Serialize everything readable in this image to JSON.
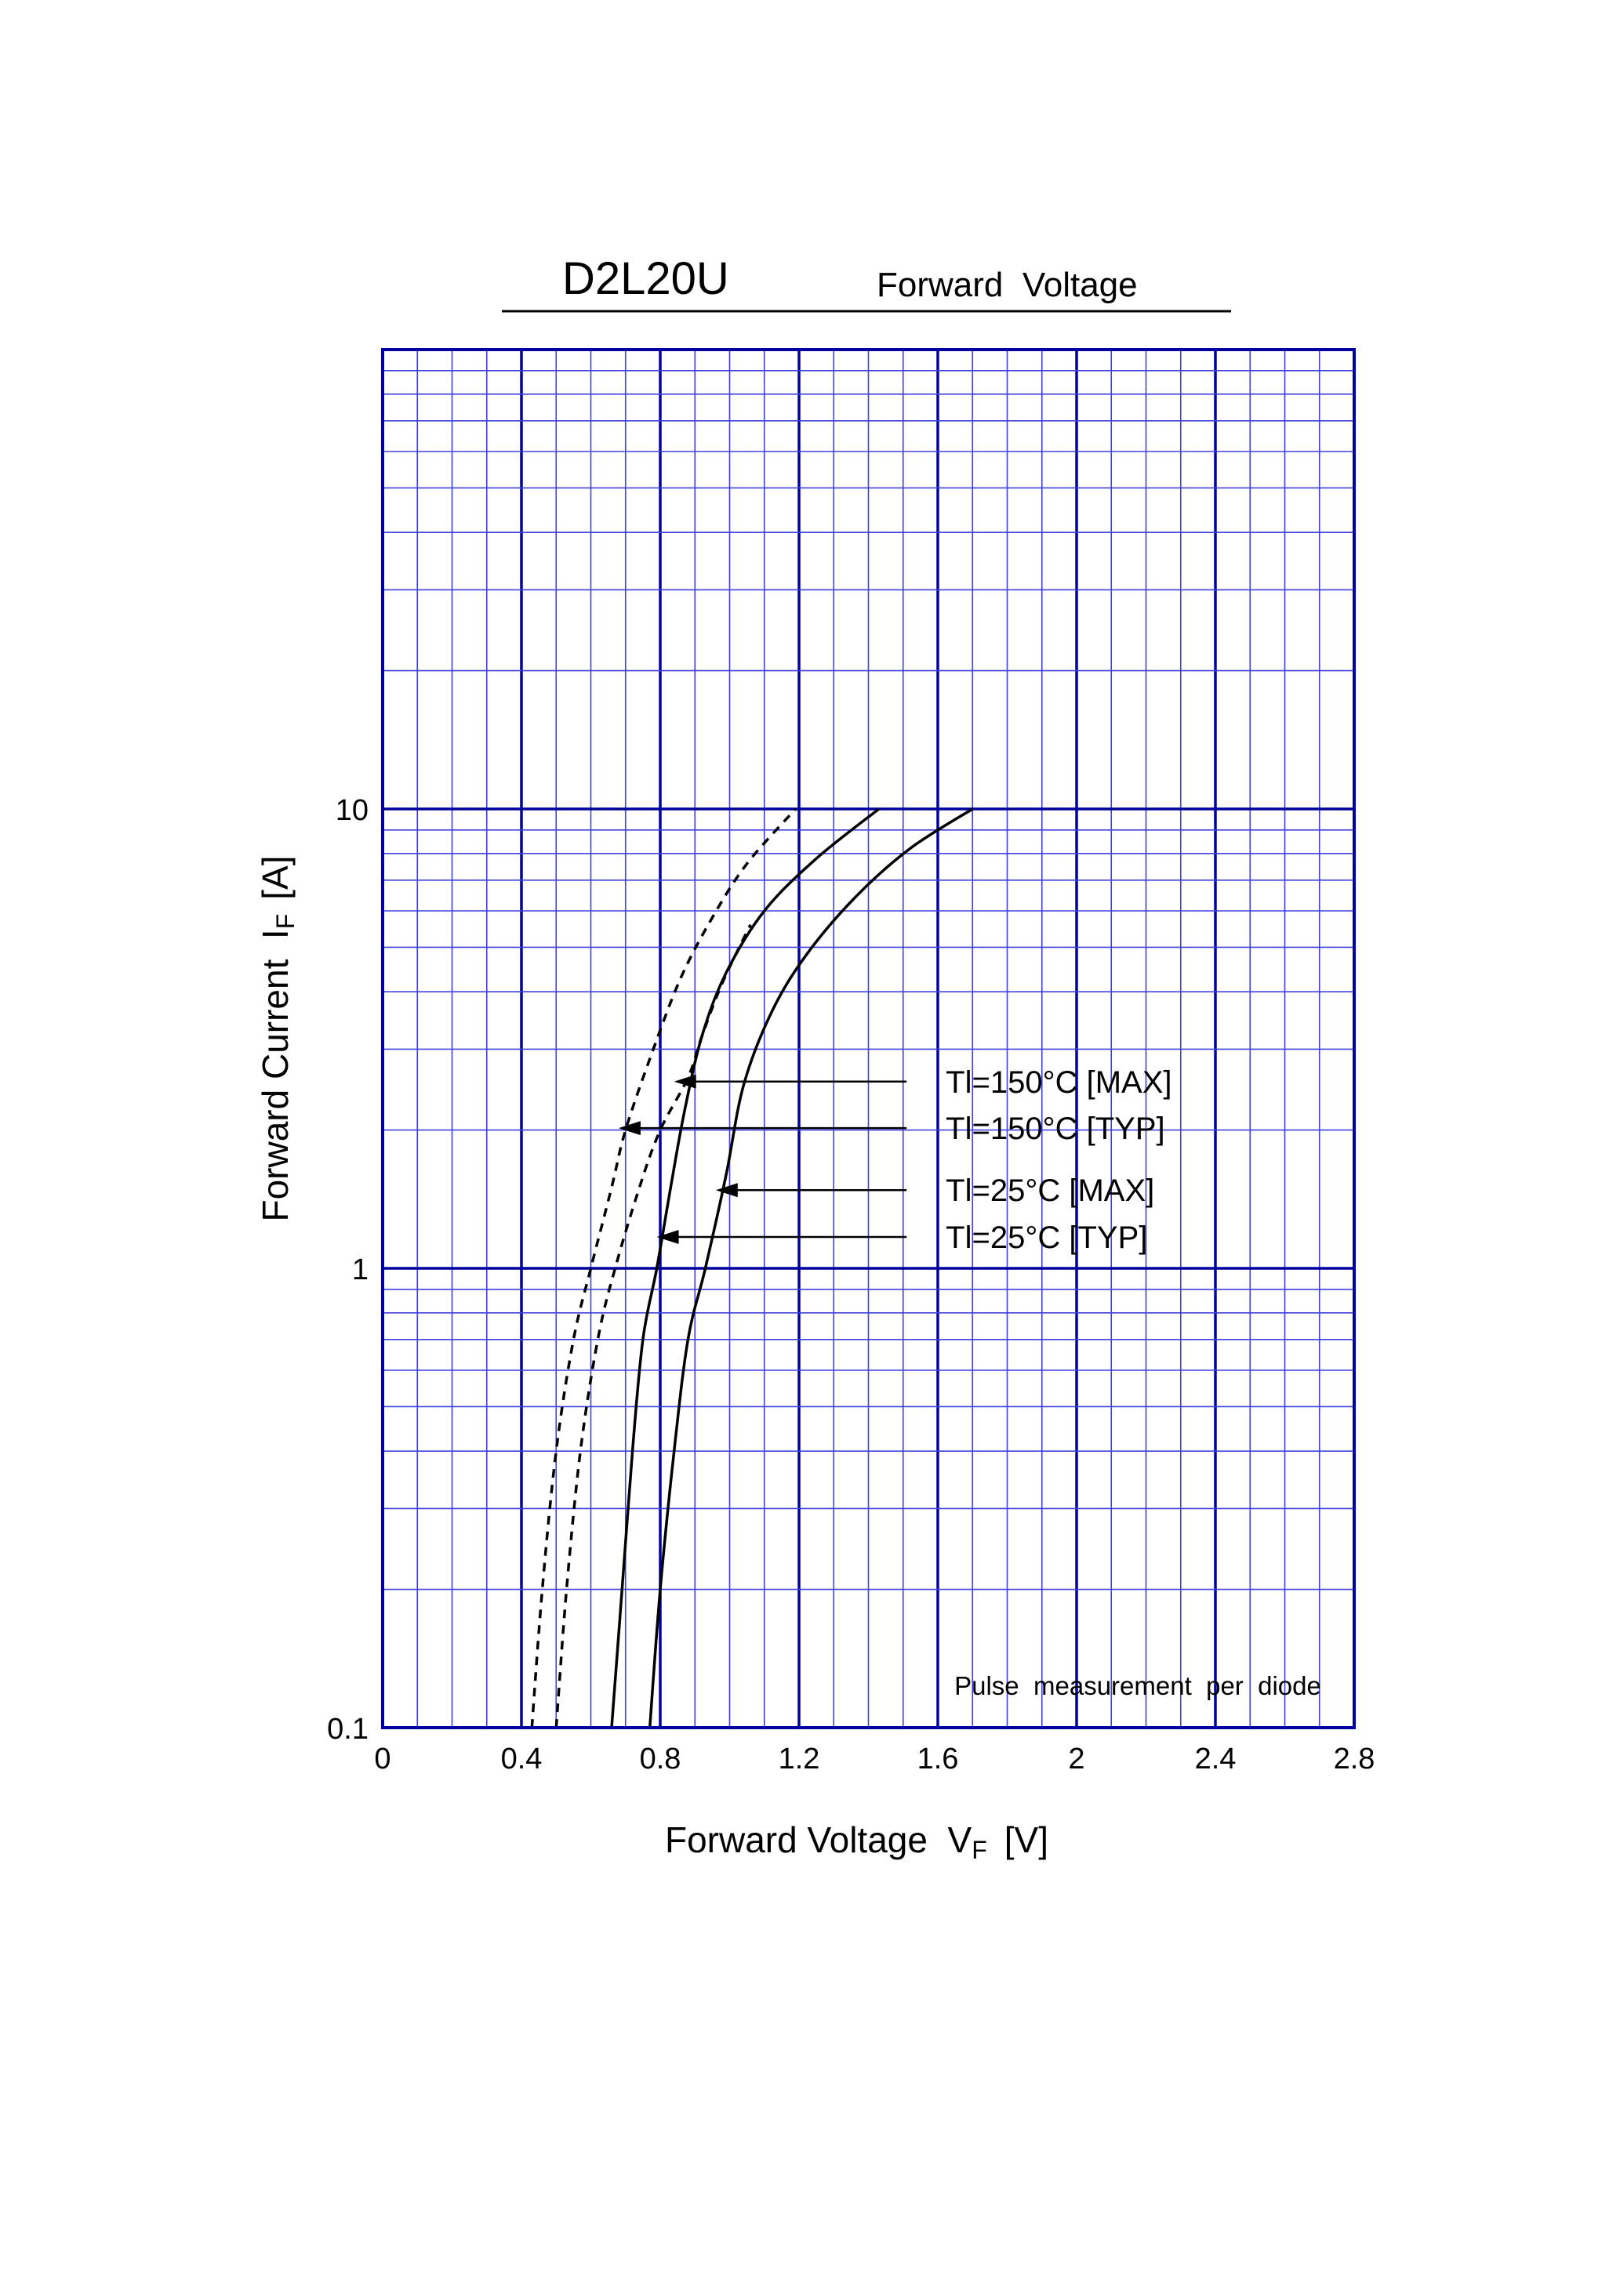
{
  "colors": {
    "grid_major": "#0000a0",
    "grid_minor": "#4040e0",
    "curve": "#000000",
    "background": "#ffffff"
  },
  "header": {
    "part_number": "D2L20U",
    "subtitle": "Forward  Voltage"
  },
  "axes": {
    "x_label_main": "Forward Voltage  V",
    "x_label_sub": "F",
    "x_label_unit": "[V]",
    "y_label_main": "Forward Current  I",
    "y_label_sub": "F",
    "y_label_unit": "[A]"
  },
  "note": "Pulse  measurement  per  diode",
  "chart_data": {
    "type": "line",
    "x_scale": "linear",
    "y_scale": "log",
    "xlim": [
      0,
      2.8
    ],
    "ylim": [
      0.1,
      100
    ],
    "x_major_ticks": [
      0,
      0.4,
      0.8,
      1.2,
      1.6,
      2,
      2.4,
      2.8
    ],
    "x_tick_labels": [
      "0",
      "0.4",
      "0.8",
      "1.2",
      "1.6",
      "2",
      "2.4",
      "2.8"
    ],
    "x_minor_step": 0.1,
    "y_tick_values": [
      0.1,
      1,
      10
    ],
    "y_tick_labels": [
      "0.1",
      "1",
      "10"
    ],
    "grid": true,
    "series": [
      {
        "name": "Tl=150°C [TYP]",
        "style": "dashed",
        "points": [
          [
            0.43,
            0.1
          ],
          [
            0.46,
            0.2
          ],
          [
            0.5,
            0.4
          ],
          [
            0.55,
            0.7
          ],
          [
            0.6,
            1.0
          ],
          [
            0.66,
            1.5
          ],
          [
            0.7,
            2.0
          ],
          [
            0.78,
            3.0
          ],
          [
            0.86,
            4.3
          ],
          [
            0.95,
            5.8
          ],
          [
            1.05,
            7.6
          ],
          [
            1.19,
            10.0
          ]
        ]
      },
      {
        "name": "Tl=150°C [MAX]",
        "style": "dashed",
        "points": [
          [
            0.5,
            0.1
          ],
          [
            0.53,
            0.2
          ],
          [
            0.57,
            0.4
          ],
          [
            0.62,
            0.7
          ],
          [
            0.67,
            1.0
          ],
          [
            0.74,
            1.5
          ],
          [
            0.8,
            2.0
          ],
          [
            0.88,
            2.6
          ],
          [
            0.92,
            3.2
          ],
          [
            0.98,
            4.2
          ],
          [
            1.06,
            5.6
          ]
        ]
      },
      {
        "name": "Tl=25°C [TYP]",
        "style": "solid",
        "points": [
          [
            0.66,
            0.1
          ],
          [
            0.69,
            0.2
          ],
          [
            0.72,
            0.4
          ],
          [
            0.75,
            0.7
          ],
          [
            0.79,
            1.0
          ],
          [
            0.83,
            1.5
          ],
          [
            0.87,
            2.2
          ],
          [
            0.92,
            3.2
          ],
          [
            0.99,
            4.4
          ],
          [
            1.1,
            6.0
          ],
          [
            1.25,
            7.8
          ],
          [
            1.43,
            10.0
          ]
        ]
      },
      {
        "name": "Tl=25°C [MAX]",
        "style": "solid",
        "points": [
          [
            0.77,
            0.1
          ],
          [
            0.8,
            0.2
          ],
          [
            0.84,
            0.4
          ],
          [
            0.88,
            0.7
          ],
          [
            0.93,
            1.0
          ],
          [
            0.99,
            1.6
          ],
          [
            1.04,
            2.5
          ],
          [
            1.12,
            3.6
          ],
          [
            1.22,
            4.8
          ],
          [
            1.36,
            6.4
          ],
          [
            1.52,
            8.2
          ],
          [
            1.7,
            10.0
          ]
        ]
      }
    ],
    "annotations": [
      {
        "text": "Tl=150°C [MAX]",
        "target": [
          0.84,
          2.55
        ],
        "tail": [
          1.51,
          2.55
        ]
      },
      {
        "text": "Tl=150°C [TYP]",
        "target": [
          0.68,
          2.02
        ],
        "tail": [
          1.51,
          2.02
        ]
      },
      {
        "text": "Tl=25°C [MAX]",
        "target": [
          0.96,
          1.48
        ],
        "tail": [
          1.51,
          1.48
        ]
      },
      {
        "text": "Tl=25°C [TYP]",
        "target": [
          0.79,
          1.17
        ],
        "tail": [
          1.51,
          1.17
        ]
      }
    ]
  }
}
